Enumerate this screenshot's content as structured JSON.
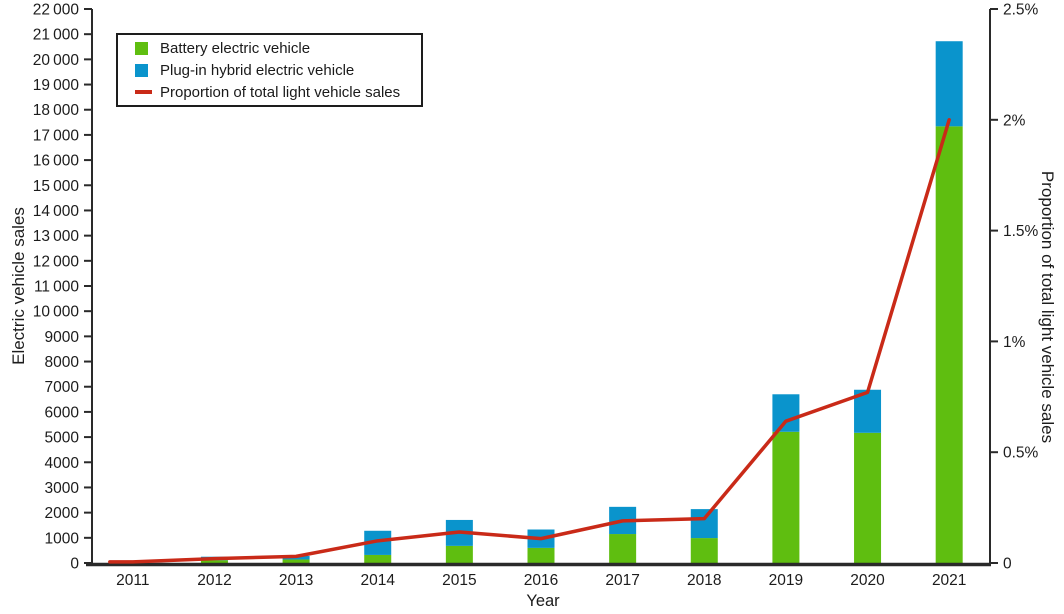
{
  "legend": {
    "items": [
      {
        "label": "Battery electric vehicle",
        "swatch": "square",
        "color": "#5FBE10"
      },
      {
        "label": "Plug-in hybrid electric vehicle",
        "swatch": "square",
        "color": "#0A94CC"
      },
      {
        "label": "Proportion of total light vehicle sales",
        "swatch": "line-dash",
        "color": "#C92A18"
      }
    ]
  },
  "axes": {
    "left": {
      "title": "Electric vehicle sales",
      "ticks": [
        {
          "value": 0,
          "label": "0"
        },
        {
          "value": 1000,
          "label": "1000"
        },
        {
          "value": 2000,
          "label": "2000"
        },
        {
          "value": 3000,
          "label": "3000"
        },
        {
          "value": 4000,
          "label": "4000"
        },
        {
          "value": 5000,
          "label": "5000"
        },
        {
          "value": 6000,
          "label": "6000"
        },
        {
          "value": 7000,
          "label": "7000"
        },
        {
          "value": 8000,
          "label": "8000"
        },
        {
          "value": 9000,
          "label": "9000"
        },
        {
          "value": 10000,
          "label": "10 000"
        },
        {
          "value": 11000,
          "label": "11 000"
        },
        {
          "value": 12000,
          "label": "12 000"
        },
        {
          "value": 13000,
          "label": "13 000"
        },
        {
          "value": 14000,
          "label": "14 000"
        },
        {
          "value": 15000,
          "label": "15 000"
        },
        {
          "value": 16000,
          "label": "16 000"
        },
        {
          "value": 17000,
          "label": "17 000"
        },
        {
          "value": 18000,
          "label": "18 000"
        },
        {
          "value": 19000,
          "label": "19 000"
        },
        {
          "value": 20000,
          "label": "20 000"
        },
        {
          "value": 21000,
          "label": "21 000"
        },
        {
          "value": 22000,
          "label": "22 000"
        }
      ]
    },
    "right": {
      "title": "Proportion of total light vehicle sales",
      "ticks": [
        {
          "value": 0,
          "label": "0"
        },
        {
          "value": 0.5,
          "label": "0.5%"
        },
        {
          "value": 1.0,
          "label": "1%"
        },
        {
          "value": 1.5,
          "label": "1.5%"
        },
        {
          "value": 2.0,
          "label": "2%"
        },
        {
          "value": 2.5,
          "label": "2.5%"
        }
      ]
    },
    "x": {
      "title": "Year"
    }
  },
  "chart_data": {
    "type": "bar",
    "subtype": "stacked-bars-with-line-dual-axis",
    "title": "",
    "categories": [
      "2011",
      "2012",
      "2013",
      "2014",
      "2015",
      "2016",
      "2017",
      "2018",
      "2019",
      "2020",
      "2021"
    ],
    "series": [
      {
        "name": "Battery electric vehicle",
        "type": "bar",
        "stack": "ev",
        "axis": "left",
        "color": "#5FBE10",
        "values": [
          30,
          110,
          140,
          320,
          680,
          600,
          1150,
          990,
          5210,
          5170,
          17340
        ]
      },
      {
        "name": "Plug-in hybrid electric vehicle",
        "type": "bar",
        "stack": "ev",
        "axis": "left",
        "color": "#0A94CC",
        "values": [
          10,
          140,
          140,
          960,
          1030,
          730,
          1080,
          1150,
          1490,
          1710,
          3380
        ]
      },
      {
        "name": "Proportion of total light vehicle sales",
        "type": "line",
        "axis": "right",
        "color": "#C92A18",
        "values": [
          0.005,
          0.02,
          0.03,
          0.1,
          0.14,
          0.11,
          0.19,
          0.2,
          0.64,
          0.77,
          2.0
        ]
      }
    ],
    "xlabel": "Year",
    "ylabel_left": "Electric vehicle sales",
    "ylabel_right": "Proportion of total light vehicle sales",
    "ylim_left": [
      0,
      22000
    ],
    "ylim_right": [
      0,
      2.5
    ],
    "grid": false,
    "legend_position": "top-left"
  },
  "colors": {
    "bev": "#5FBE10",
    "phev": "#0A94CC",
    "line": "#C92A18",
    "axis": "#2a2a2a",
    "text": "#1c1c1c",
    "background": "#FFFFFF"
  }
}
